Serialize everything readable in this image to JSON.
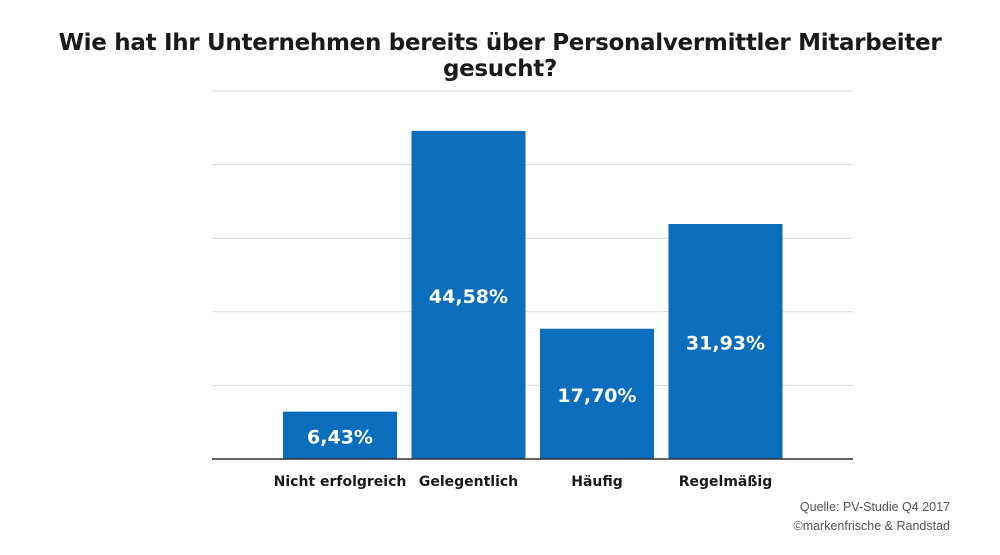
{
  "title": "Wie hat Ihr Unternehmen bereits über Personalvermittler Mitarbeiter gesucht?",
  "source": {
    "line1": "Quelle: PV-Studie Q4 2017",
    "line2": "©markenfrische & Randstad"
  },
  "colors": {
    "bar": "#0a6ebd",
    "grid": "#d9d9d9",
    "axis": "#333333",
    "label": "#ffffff",
    "tick": "#1a1a1a"
  },
  "chart_data": {
    "type": "bar",
    "title": "Wie hat Ihr Unternehmen bereits über Personalvermittler Mitarbeiter gesucht?",
    "categories": [
      "Nicht erfolgreich",
      "Gelegentlich",
      "Häufig",
      "Regelmäßig"
    ],
    "values": [
      6.43,
      44.58,
      17.7,
      31.93
    ],
    "value_labels": [
      "6,43%",
      "44,58%",
      "17,70%",
      "31,93%"
    ],
    "xlabel": "",
    "ylabel": "",
    "ylim": [
      0,
      50
    ],
    "y_ticks_shown": false,
    "grid": true,
    "legend": "none"
  }
}
